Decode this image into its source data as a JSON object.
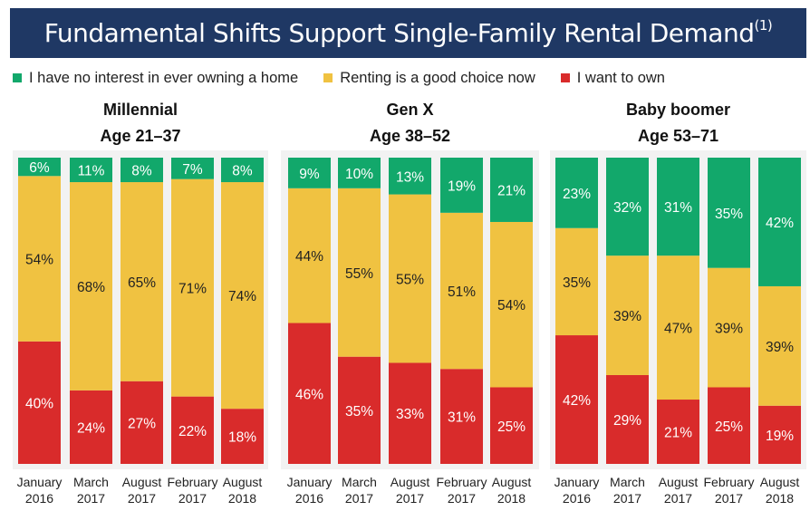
{
  "title": {
    "text": "Fundamental Shifts Support Single-Family Rental Demand",
    "footnote_mark": "(1)"
  },
  "colors": {
    "header_bg": "#1f3864",
    "no_interest": "#12a86b",
    "renting_good": "#f0c241",
    "want_own": "#d92b2b",
    "panel_bg": "#f2f2f2"
  },
  "legend": [
    {
      "label": "I have no interest in ever owning a home",
      "color": "#12a86b"
    },
    {
      "label": "Renting is a good choice now",
      "color": "#f0c241"
    },
    {
      "label": "I want to own",
      "color": "#d92b2b"
    }
  ],
  "chart_data": [
    {
      "type": "bar",
      "stacked": true,
      "title": "Millennial",
      "subtitle": "Age 21–37",
      "categories": [
        [
          "January",
          "2016"
        ],
        [
          "March",
          "2017"
        ],
        [
          "August",
          "2017"
        ],
        [
          "February",
          "2017"
        ],
        [
          "August",
          "2018"
        ]
      ],
      "series": [
        {
          "name": "I want to own",
          "values": [
            40,
            24,
            27,
            22,
            18
          ],
          "labels": [
            "40%",
            "24%",
            "27%",
            "22%",
            "18%"
          ]
        },
        {
          "name": "Renting is a good choice now",
          "values": [
            54,
            68,
            65,
            71,
            74
          ],
          "labels": [
            "54%",
            "68%",
            "65%",
            "71%",
            "74%"
          ]
        },
        {
          "name": "I have no interest in ever owning a home",
          "values": [
            6,
            11,
            8,
            7,
            8
          ],
          "labels": [
            "6%",
            "11%",
            "8%",
            "7%",
            "8%"
          ]
        }
      ]
    },
    {
      "type": "bar",
      "stacked": true,
      "title": "Gen X",
      "subtitle": "Age 38–52",
      "categories": [
        [
          "January",
          "2016"
        ],
        [
          "March",
          "2017"
        ],
        [
          "August",
          "2017"
        ],
        [
          "February",
          "2017"
        ],
        [
          "August",
          "2018"
        ]
      ],
      "series": [
        {
          "name": "I want to own",
          "values": [
            46,
            35,
            33,
            31,
            25
          ],
          "labels": [
            "46%",
            "35%",
            "33%",
            "31%",
            "25%"
          ]
        },
        {
          "name": "Renting is a good choice now",
          "values": [
            44,
            55,
            55,
            51,
            54
          ],
          "labels": [
            "44%",
            "55%",
            "55%",
            "51%",
            "54%"
          ]
        },
        {
          "name": "I have no interest in ever owning a home",
          "values": [
            9,
            10,
            13,
            19,
            21
          ],
          "labels": [
            "9%",
            "10%",
            "13%",
            "19%",
            "21%"
          ]
        }
      ]
    },
    {
      "type": "bar",
      "stacked": true,
      "title": "Baby boomer",
      "subtitle": "Age 53–71",
      "categories": [
        [
          "January",
          "2016"
        ],
        [
          "March",
          "2017"
        ],
        [
          "August",
          "2017"
        ],
        [
          "February",
          "2017"
        ],
        [
          "August",
          "2018"
        ]
      ],
      "series": [
        {
          "name": "I want to own",
          "values": [
            42,
            29,
            21,
            25,
            19
          ],
          "labels": [
            "42%",
            "29%",
            "21%",
            "25%",
            "19%"
          ]
        },
        {
          "name": "Renting is a good choice now",
          "values": [
            35,
            39,
            47,
            39,
            39
          ],
          "labels": [
            "35%",
            "39%",
            "47%",
            "39%",
            "39%"
          ]
        },
        {
          "name": "I have no interest in ever owning a home",
          "values": [
            23,
            32,
            31,
            35,
            42
          ],
          "labels": [
            "23%",
            "32%",
            "31%",
            "35%",
            "42%"
          ]
        }
      ]
    }
  ]
}
